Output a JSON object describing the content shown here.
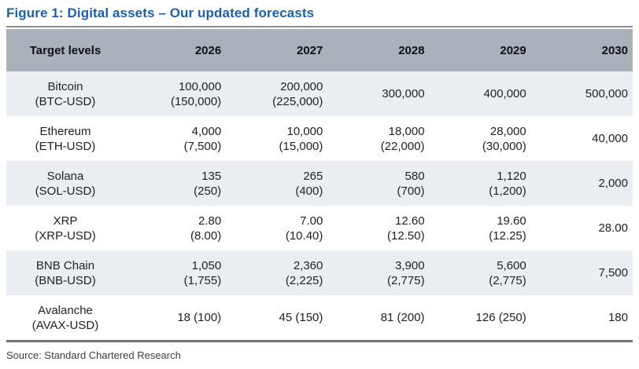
{
  "title": "Figure 1: Digital assets – Our updated forecasts",
  "source": "Source: Standard Chartered Research",
  "colors": {
    "title_blue": "#1e5fa8",
    "header_bg": "#a9b1ba",
    "alt_row_bg": "#eaeef3",
    "title_rule": "#8b929c",
    "bottom_rule": "#6d737a"
  },
  "table": {
    "header": [
      "Target levels",
      "2026",
      "2027",
      "2028",
      "2029",
      "2030"
    ],
    "rows": [
      {
        "name": "Bitcoin",
        "ticker": "(BTC-USD)",
        "cells": [
          {
            "a": "100,000",
            "b": "(150,000)"
          },
          {
            "a": "200,000",
            "b": "(225,000)"
          },
          {
            "a": "300,000"
          },
          {
            "a": "400,000"
          },
          {
            "a": "500,000"
          }
        ]
      },
      {
        "name": "Ethereum",
        "ticker": "(ETH-USD)",
        "cells": [
          {
            "a": "4,000",
            "b": "(7,500)"
          },
          {
            "a": "10,000",
            "b": "(15,000)"
          },
          {
            "a": "18,000",
            "b": "(22,000)"
          },
          {
            "a": "28,000",
            "b": "(30,000)"
          },
          {
            "a": "40,000"
          }
        ]
      },
      {
        "name": "Solana",
        "ticker": "(SOL-USD)",
        "cells": [
          {
            "a": "135",
            "b": "(250)"
          },
          {
            "a": "265",
            "b": "(400)"
          },
          {
            "a": "580",
            "b": "(700)"
          },
          {
            "a": "1,120",
            "b": "(1,200)"
          },
          {
            "a": "2,000"
          }
        ]
      },
      {
        "name": "XRP",
        "ticker": "(XRP-USD)",
        "cells": [
          {
            "a": "2.80",
            "b": "(8.00)"
          },
          {
            "a": "7.00",
            "b": "(10.40)"
          },
          {
            "a": "12.60",
            "b": "(12.50)"
          },
          {
            "a": "19.60",
            "b": "(12.25)"
          },
          {
            "a": "28.00"
          }
        ]
      },
      {
        "name": "BNB Chain",
        "ticker": "(BNB-USD)",
        "cells": [
          {
            "a": "1,050",
            "b": "(1,755)"
          },
          {
            "a": "2,360",
            "b": "(2,225)"
          },
          {
            "a": "3,900",
            "b": "(2,775)"
          },
          {
            "a": "5,600",
            "b": "(2,775)"
          },
          {
            "a": "7,500"
          }
        ]
      },
      {
        "name": "Avalanche",
        "ticker": "(AVAX-USD)",
        "cells": [
          {
            "a": "18 (100)"
          },
          {
            "a": "45 (150)"
          },
          {
            "a": "81 (200)"
          },
          {
            "a": "126 (250)"
          },
          {
            "a": "180"
          }
        ]
      }
    ]
  }
}
